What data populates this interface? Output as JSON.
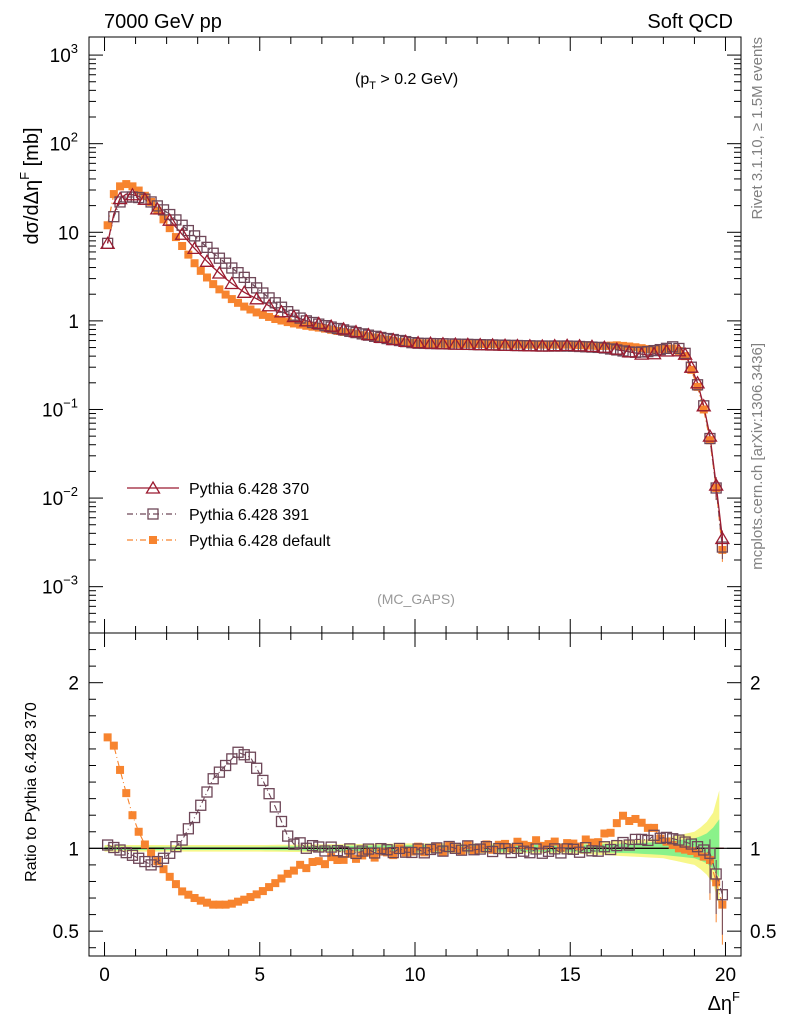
{
  "header": {
    "left": "7000 GeV pp",
    "right": "Soft QCD"
  },
  "side_labels": {
    "rivet": "Rivet 3.1.10, ≥ 1.5M events",
    "mcplots": "mcplots.cern.ch [arXiv:1306.3436]"
  },
  "colors": {
    "p370": "#9b1b30",
    "p391": "#6e4758",
    "default": "#f7842f",
    "band_green": "#8af28a",
    "band_yellow": "#f7f78a"
  },
  "chart_data": [
    {
      "type": "line",
      "panel": "main",
      "title": "(p_T > 0.2 GeV)",
      "title_main": "(p",
      "title_sub": "T",
      "title_rest": " > 0.2 GeV)",
      "ylabel": "dσ/dΔη^F [mb]",
      "ylabel_main": "dσ/dΔη",
      "ylabel_sup": "F",
      "ylabel_unit": " [mb]",
      "xlabel": "Δη^F",
      "xlabel_main": "Δη",
      "xlabel_sup": "F",
      "yscale": "log",
      "xlim": [
        -0.5,
        20.5
      ],
      "ylim": [
        0.0003,
        1600
      ],
      "y_ticks": [
        {
          "value": 0.001,
          "base": "10",
          "exp": "−3"
        },
        {
          "value": 0.01,
          "base": "10",
          "exp": "−2"
        },
        {
          "value": 0.1,
          "base": "10",
          "exp": "−1"
        },
        {
          "value": 1,
          "base": "1",
          "exp": ""
        },
        {
          "value": 10,
          "base": "10",
          "exp": ""
        },
        {
          "value": 100,
          "base": "10",
          "exp": "2"
        },
        {
          "value": 1000,
          "base": "10",
          "exp": "3"
        }
      ],
      "watermark": "(MC_GAPS)",
      "legend": [
        {
          "label": "Pythia 6.428 370",
          "marker": "triangle-open",
          "line": "solid"
        },
        {
          "label": "Pythia 6.428 391",
          "marker": "square-open",
          "line": "dashdot"
        },
        {
          "label": "Pythia 6.428 default",
          "marker": "square-filled",
          "line": "dashdot"
        }
      ],
      "knots": {
        "p370": [
          [
            0.1,
            7.5
          ],
          [
            0.3,
            16
          ],
          [
            0.5,
            24
          ],
          [
            0.7,
            27
          ],
          [
            0.9,
            26.5
          ],
          [
            1.2,
            25
          ],
          [
            1.5,
            21
          ],
          [
            2,
            15
          ],
          [
            2.5,
            9.5
          ],
          [
            3,
            6
          ],
          [
            3.5,
            4
          ],
          [
            4,
            2.8
          ],
          [
            4.5,
            2.1
          ],
          [
            5,
            1.7
          ],
          [
            5.5,
            1.35
          ],
          [
            6,
            1.15
          ],
          [
            6.5,
            1.0
          ],
          [
            7,
            0.92
          ],
          [
            7.5,
            0.84
          ],
          [
            8,
            0.77
          ],
          [
            8.5,
            0.7
          ],
          [
            9,
            0.64
          ],
          [
            9.5,
            0.6
          ],
          [
            10,
            0.57
          ],
          [
            11,
            0.55
          ],
          [
            12,
            0.54
          ],
          [
            13,
            0.53
          ],
          [
            14,
            0.52
          ],
          [
            15,
            0.53
          ],
          [
            16,
            0.51
          ],
          [
            16.5,
            0.48
          ],
          [
            17,
            0.44
          ],
          [
            17.5,
            0.41
          ],
          [
            18,
            0.45
          ],
          [
            18.4,
            0.48
          ],
          [
            18.7,
            0.42
          ],
          [
            18.9,
            0.3
          ],
          [
            19.1,
            0.2
          ],
          [
            19.3,
            0.11
          ],
          [
            19.5,
            0.05
          ],
          [
            19.7,
            0.014
          ],
          [
            19.9,
            0.0035
          ]
        ],
        "p391": [
          [
            0.1,
            7.5
          ],
          [
            0.3,
            15
          ],
          [
            0.5,
            22
          ],
          [
            0.7,
            25
          ],
          [
            0.9,
            25
          ],
          [
            1.2,
            24.5
          ],
          [
            1.5,
            22
          ],
          [
            2,
            17
          ],
          [
            2.5,
            12
          ],
          [
            3,
            8.5
          ],
          [
            3.5,
            5.8
          ],
          [
            4,
            4.2
          ],
          [
            4.5,
            3.1
          ],
          [
            5,
            2.2
          ],
          [
            5.5,
            1.6
          ],
          [
            6,
            1.2
          ],
          [
            6.5,
            1.0
          ],
          [
            7,
            0.9
          ],
          [
            7.5,
            0.82
          ],
          [
            8,
            0.75
          ],
          [
            8.5,
            0.69
          ],
          [
            9,
            0.64
          ],
          [
            9.5,
            0.6
          ],
          [
            10,
            0.56
          ],
          [
            11,
            0.55
          ],
          [
            12,
            0.54
          ],
          [
            13,
            0.53
          ],
          [
            14,
            0.52
          ],
          [
            15,
            0.52
          ],
          [
            16,
            0.5
          ],
          [
            16.5,
            0.47
          ],
          [
            17,
            0.44
          ],
          [
            17.5,
            0.45
          ],
          [
            18,
            0.48
          ],
          [
            18.4,
            0.52
          ],
          [
            18.7,
            0.43
          ],
          [
            18.9,
            0.3
          ],
          [
            19.1,
            0.19
          ],
          [
            19.3,
            0.11
          ],
          [
            19.5,
            0.047
          ],
          [
            19.7,
            0.013
          ],
          [
            19.9,
            0.0028
          ]
        ],
        "default": [
          [
            0.1,
            12
          ],
          [
            0.3,
            27
          ],
          [
            0.5,
            33
          ],
          [
            0.7,
            35
          ],
          [
            0.9,
            33
          ],
          [
            1.2,
            28
          ],
          [
            1.5,
            22
          ],
          [
            2,
            12.5
          ],
          [
            2.5,
            7
          ],
          [
            3,
            4
          ],
          [
            3.5,
            2.6
          ],
          [
            4,
            1.85
          ],
          [
            4.5,
            1.45
          ],
          [
            5,
            1.2
          ],
          [
            5.5,
            1.05
          ],
          [
            6,
            0.95
          ],
          [
            6.5,
            0.88
          ],
          [
            7,
            0.83
          ],
          [
            7.5,
            0.77
          ],
          [
            8,
            0.72
          ],
          [
            8.5,
            0.67
          ],
          [
            9,
            0.62
          ],
          [
            9.5,
            0.58
          ],
          [
            10,
            0.56
          ],
          [
            11,
            0.55
          ],
          [
            12,
            0.55
          ],
          [
            13,
            0.54
          ],
          [
            14,
            0.54
          ],
          [
            15,
            0.54
          ],
          [
            16,
            0.52
          ],
          [
            16.5,
            0.53
          ],
          [
            17,
            0.51
          ],
          [
            17.5,
            0.48
          ],
          [
            18,
            0.48
          ],
          [
            18.4,
            0.49
          ],
          [
            18.7,
            0.4
          ],
          [
            18.9,
            0.28
          ],
          [
            19.1,
            0.18
          ],
          [
            19.3,
            0.1
          ],
          [
            19.5,
            0.045
          ],
          [
            19.7,
            0.013
          ],
          [
            19.9,
            0.0026
          ]
        ]
      },
      "x_max": 19.9,
      "bin_width": 0.2
    },
    {
      "type": "line",
      "panel": "ratio",
      "ylabel": "Ratio to Pythia 6.428 370",
      "xlim": [
        -0.5,
        20.5
      ],
      "ylim": [
        0.35,
        2.3
      ],
      "x_ticks": [
        0,
        5,
        10,
        15,
        20
      ],
      "y_ticks": [
        0.5,
        1,
        2
      ],
      "y_tick_labels": [
        "0.5",
        "1",
        "2"
      ],
      "reference_line": 1,
      "band": {
        "x": [
          0,
          5,
          10,
          15,
          17,
          18,
          18.5,
          19,
          19.3,
          19.5,
          19.7,
          19.9
        ],
        "green_half": [
          0.01,
          0.01,
          0.02,
          0.02,
          0.03,
          0.04,
          0.05,
          0.06,
          0.08,
          0.1,
          0.15,
          0.2
        ],
        "yellow_half": [
          0.02,
          0.02,
          0.03,
          0.03,
          0.05,
          0.06,
          0.08,
          0.1,
          0.14,
          0.18,
          0.25,
          0.45
        ]
      },
      "knots": {
        "p391": [
          [
            0.1,
            1.02
          ],
          [
            0.5,
            0.99
          ],
          [
            1,
            0.95
          ],
          [
            1.5,
            0.9
          ],
          [
            2,
            0.95
          ],
          [
            2.5,
            1.05
          ],
          [
            3,
            1.22
          ],
          [
            3.5,
            1.42
          ],
          [
            4,
            1.52
          ],
          [
            4.3,
            1.58
          ],
          [
            4.7,
            1.55
          ],
          [
            5,
            1.45
          ],
          [
            5.5,
            1.25
          ],
          [
            6,
            1.03
          ],
          [
            7,
            1.0
          ],
          [
            8,
            0.98
          ],
          [
            9,
            0.99
          ],
          [
            10,
            0.98
          ],
          [
            11,
            1.0
          ],
          [
            12,
            1.0
          ],
          [
            13,
            0.99
          ],
          [
            14,
            0.98
          ],
          [
            15,
            0.99
          ],
          [
            16,
            0.99
          ],
          [
            17,
            1.04
          ],
          [
            17.5,
            1.06
          ],
          [
            18,
            1.07
          ],
          [
            18.5,
            1.05
          ],
          [
            19,
            1.02
          ],
          [
            19.5,
            0.97
          ],
          [
            19.9,
            0.72
          ]
        ],
        "default": [
          [
            0.1,
            1.67
          ],
          [
            0.3,
            1.62
          ],
          [
            0.6,
            1.4
          ],
          [
            0.9,
            1.2
          ],
          [
            1.2,
            1.05
          ],
          [
            1.5,
            0.97
          ],
          [
            2,
            0.85
          ],
          [
            2.5,
            0.74
          ],
          [
            3,
            0.69
          ],
          [
            3.5,
            0.66
          ],
          [
            4,
            0.66
          ],
          [
            4.5,
            0.69
          ],
          [
            5,
            0.73
          ],
          [
            5.5,
            0.79
          ],
          [
            6,
            0.86
          ],
          [
            6.5,
            0.9
          ],
          [
            7,
            0.92
          ],
          [
            8,
            0.95
          ],
          [
            9,
            0.97
          ],
          [
            10,
            0.99
          ],
          [
            11,
            1.0
          ],
          [
            12,
            1.0
          ],
          [
            13,
            1.02
          ],
          [
            14,
            1.03
          ],
          [
            15,
            1.02
          ],
          [
            16,
            1.05
          ],
          [
            16.5,
            1.15
          ],
          [
            16.8,
            1.2
          ],
          [
            17,
            1.17
          ],
          [
            17.5,
            1.14
          ],
          [
            18,
            1.05
          ],
          [
            18.5,
            1.0
          ],
          [
            19,
            0.98
          ],
          [
            19.5,
            0.93
          ],
          [
            19.9,
            0.66
          ]
        ]
      }
    }
  ]
}
